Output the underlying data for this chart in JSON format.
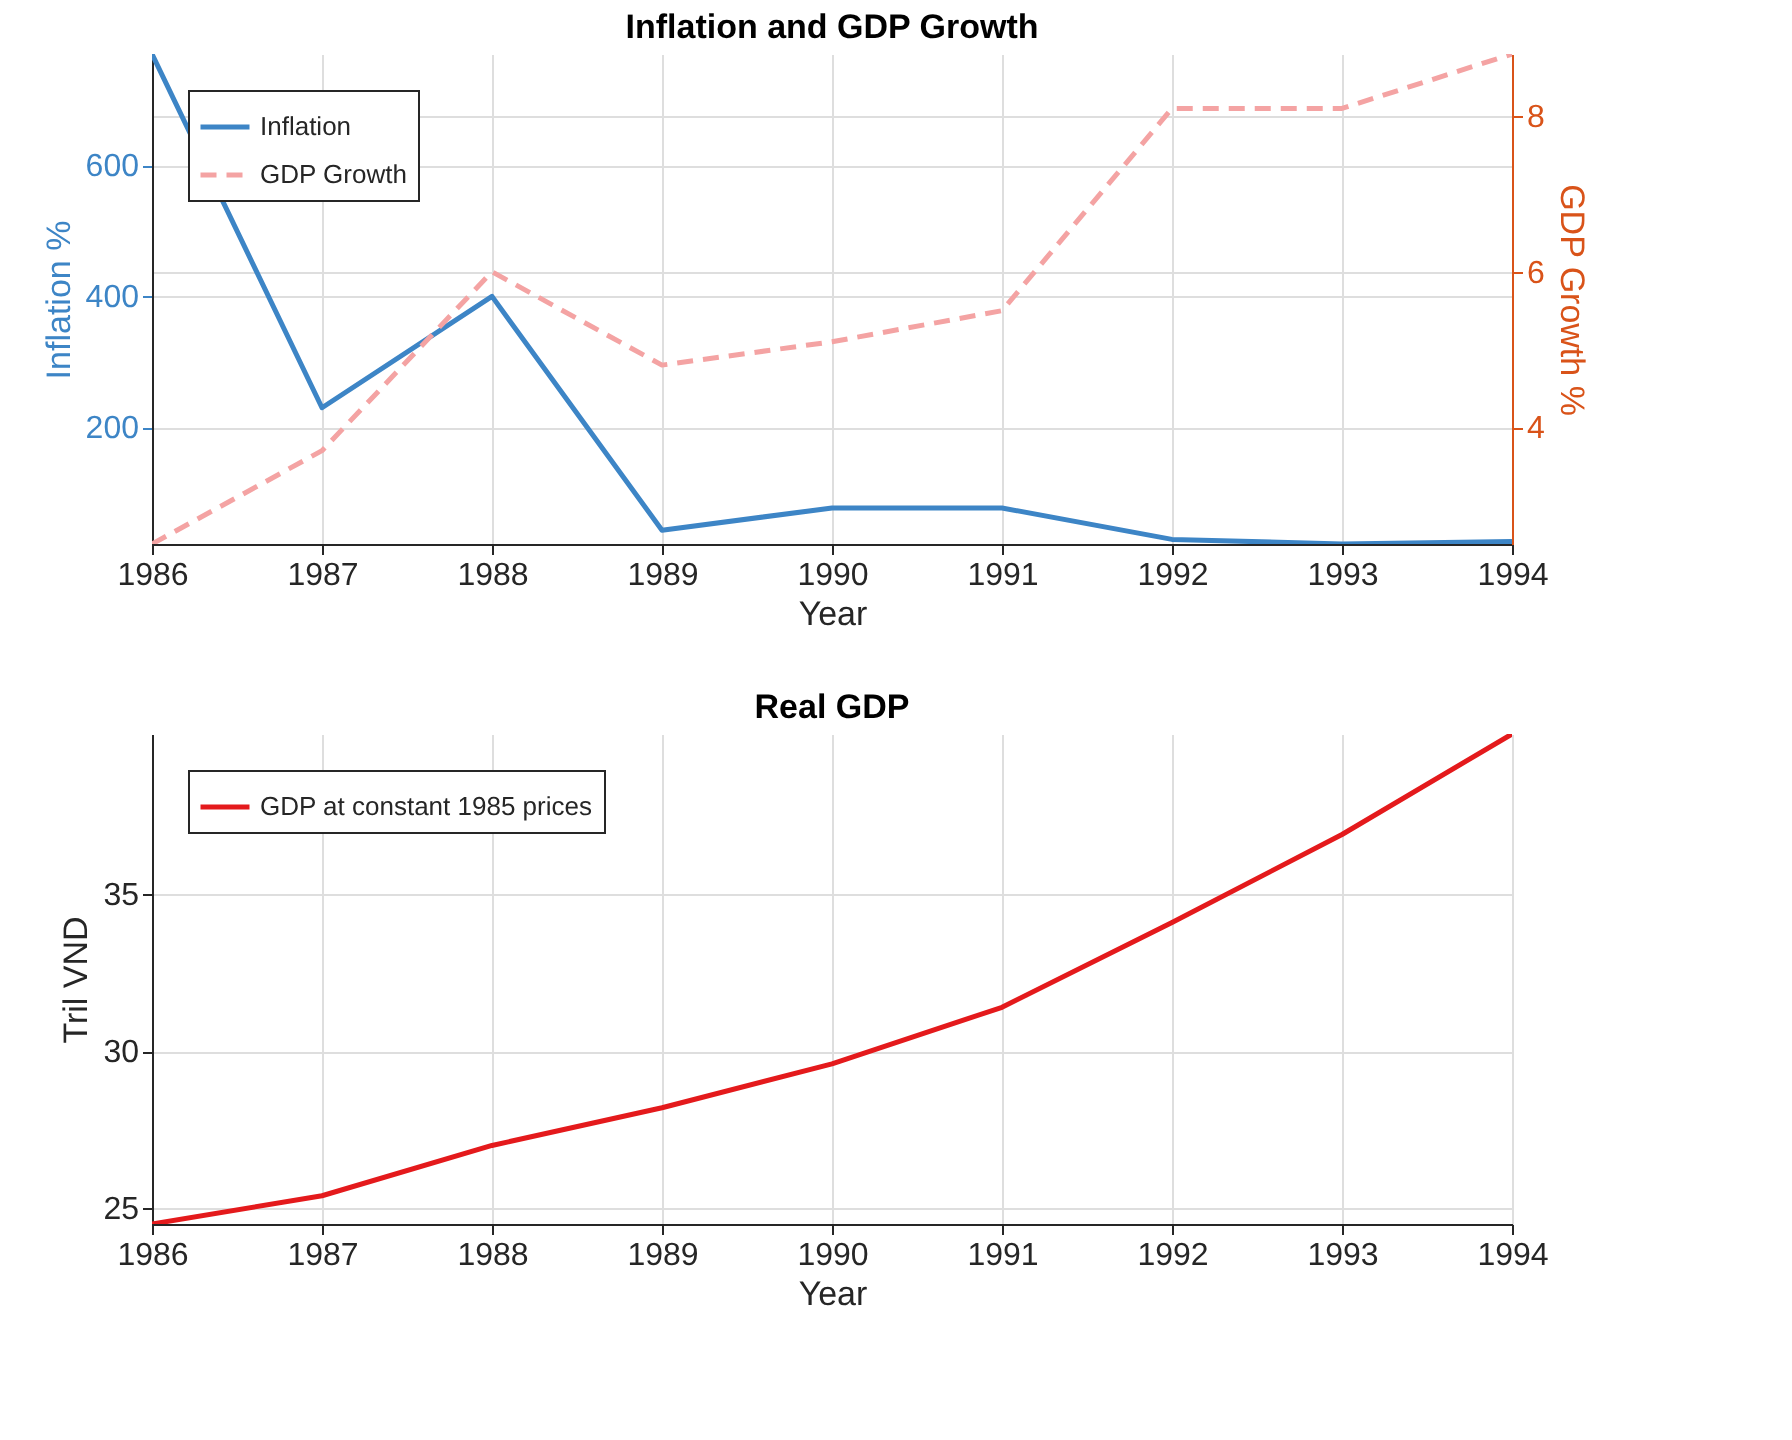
{
  "chart_data": [
    {
      "type": "line",
      "title": "Inflation and GDP Growth",
      "xlabel": "Year",
      "ylabel": "Inflation %",
      "y2label": "GDP Growth %",
      "x": [
        1986,
        1987,
        1988,
        1989,
        1990,
        1991,
        1992,
        1993,
        1994
      ],
      "xlim": [
        1986,
        1994
      ],
      "xticks": [
        1986,
        1987,
        1988,
        1989,
        1990,
        1991,
        1992,
        1993,
        1994
      ],
      "ylim": [
        22,
        770
      ],
      "yticks": [
        200,
        400,
        600
      ],
      "y2lim": [
        2.5,
        8.8
      ],
      "y2ticks": [
        4,
        6,
        8
      ],
      "grid": true,
      "legend": "top left",
      "marker": "none",
      "series": [
        {
          "name": "Inflation",
          "color": "#3d85c6",
          "line_style": "solid",
          "values": [
            770,
            230,
            400,
            43,
            77,
            77,
            29,
            22,
            26
          ]
        },
        {
          "name": "GDP Growth",
          "color": "#f4a3a3",
          "line_style": "dashed",
          "axis": "y2",
          "values": [
            2.5,
            3.7,
            6.0,
            4.8,
            5.1,
            5.5,
            8.1,
            8.1,
            8.8
          ]
        }
      ]
    },
    {
      "type": "line",
      "title": "Real GDP",
      "xlabel": "Year",
      "ylabel": "Tril VND",
      "x": [
        1986,
        1987,
        1988,
        1989,
        1990,
        1991,
        1992,
        1993,
        1994
      ],
      "xlim": [
        1986,
        1994
      ],
      "xticks": [
        1986,
        1987,
        1988,
        1989,
        1990,
        1991,
        1992,
        1993,
        1994
      ],
      "ylim": [
        24.5,
        40.1
      ],
      "yticks": [
        25,
        30,
        35
      ],
      "grid": true,
      "legend": "top left",
      "marker": "none",
      "series": [
        {
          "name": "GDP at constant 1985 prices",
          "color": "#e41a1c",
          "line_style": "solid",
          "values": [
            24.5,
            25.4,
            27.0,
            28.2,
            29.6,
            31.4,
            34.1,
            36.9,
            40.1
          ]
        }
      ]
    }
  ]
}
